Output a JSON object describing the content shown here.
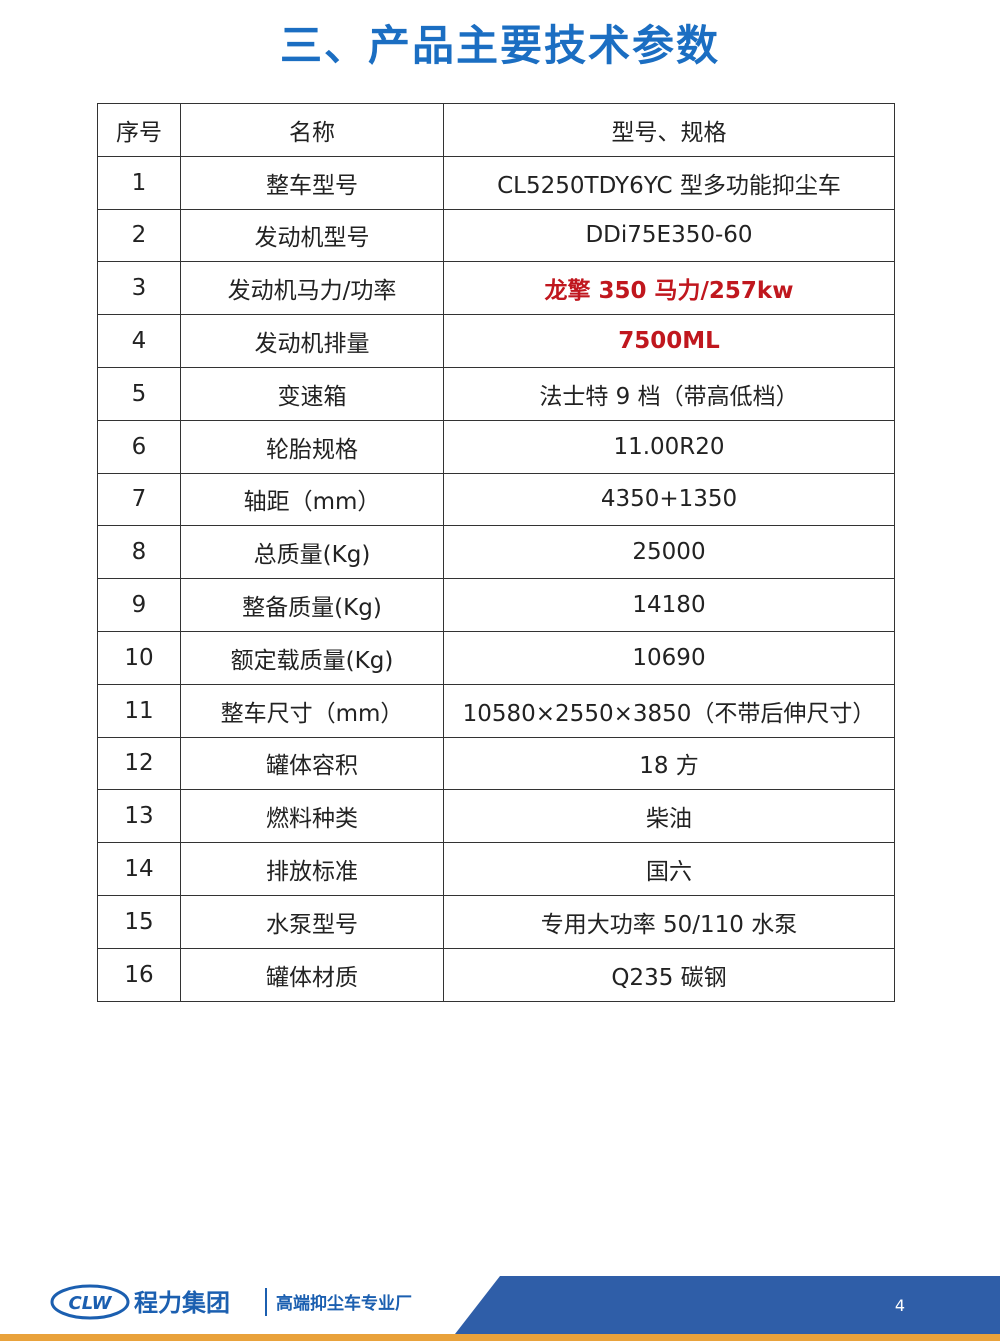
{
  "header": {
    "title": "三、产品主要技术参数"
  },
  "table": {
    "columns": [
      "序号",
      "名称",
      "型号、规格"
    ],
    "rows": [
      [
        "1",
        "整车型号",
        "CL5250TDY6YC 型多功能抑尘车"
      ],
      [
        "2",
        "发动机型号",
        "DDi75E350-60"
      ],
      [
        "3",
        "发动机马力/功率",
        "龙擎 350 马力/257kw"
      ],
      [
        "4",
        "发动机排量",
        "7500ML"
      ],
      [
        "5",
        "变速箱",
        "法士特 9 档（带高低档）"
      ],
      [
        "6",
        "轮胎规格",
        "11.00R20"
      ],
      [
        "7",
        "轴距（mm）",
        "4350+1350"
      ],
      [
        "8",
        "总质量(Kg)",
        "25000"
      ],
      [
        "9",
        "整备质量(Kg)",
        "14180"
      ],
      [
        "10",
        "额定载质量(Kg)",
        "10690"
      ],
      [
        "11",
        "整车尺寸（mm）",
        "10580×2550×3850（不带后伸尺寸）"
      ],
      [
        "12",
        "罐体容积",
        "18 方"
      ],
      [
        "13",
        "燃料种类",
        "柴油"
      ],
      [
        "14",
        "排放标准",
        "国六"
      ],
      [
        "15",
        "水泵型号",
        "专用大功率 50/110 水泵"
      ],
      [
        "16",
        "罐体材质",
        "Q235 碳钢"
      ]
    ]
  },
  "footer": {
    "logo": "CLW",
    "company": "程力集团",
    "slogan": "高端抑尘车专业厂",
    "page": "4"
  }
}
